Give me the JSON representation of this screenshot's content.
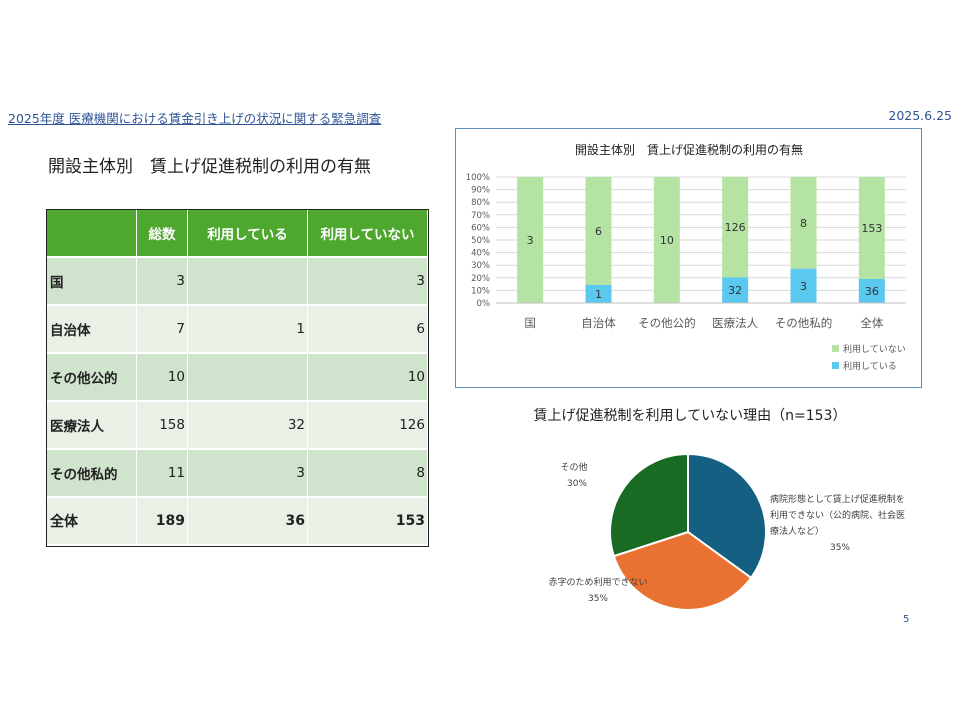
{
  "header": {
    "survey_title": "2025年度 医療機関における賃金引き上げの状況に関する緊急調査",
    "date": "2025.6.25"
  },
  "table": {
    "title": "開設主体別　賃上げ促進税制の利用の有無",
    "headers": [
      "",
      "総数",
      "利用している",
      "利用していない"
    ],
    "rows": [
      {
        "label": "国",
        "total": "3",
        "using": "",
        "not_using": "3"
      },
      {
        "label": "自治体",
        "total": "7",
        "using": "1",
        "not_using": "6"
      },
      {
        "label": "その他公的",
        "total": "10",
        "using": "",
        "not_using": "10"
      },
      {
        "label": "医療法人",
        "total": "158",
        "using": "32",
        "not_using": "126"
      },
      {
        "label": "その他私的",
        "total": "11",
        "using": "3",
        "not_using": "8"
      },
      {
        "label": "全体",
        "total": "189",
        "using": "36",
        "not_using": "153"
      }
    ]
  },
  "page_number": "5",
  "chart_data": [
    {
      "type": "bar",
      "stacked": "percent",
      "title": "開設主体別　賃上げ促進税制の利用の有無",
      "categories": [
        "国",
        "自治体",
        "その他公的",
        "医療法人",
        "その他私的",
        "全体"
      ],
      "series": [
        {
          "name": "利用している",
          "values": [
            0,
            1,
            0,
            32,
            3,
            36
          ],
          "color": "#5bc8f0"
        },
        {
          "name": "利用していない",
          "values": [
            3,
            6,
            10,
            126,
            8,
            153
          ],
          "color": "#b5e3a3"
        }
      ],
      "yticks": [
        "0%",
        "10%",
        "20%",
        "30%",
        "40%",
        "50%",
        "60%",
        "70%",
        "80%",
        "90%",
        "100%"
      ],
      "ylim": [
        0,
        100
      ],
      "legend_position": "bottom-right",
      "grid": true
    },
    {
      "type": "pie",
      "title": "賃上げ促進税制を利用していない理由（n=153）",
      "slices": [
        {
          "label": "病院形態として賃上げ促進税制を利用できない（公的病院、社会医療法人など）",
          "label_lines": [
            "病院形態として賃上げ促進税制を",
            "利用できない（公的病院、社会医",
            "療法人など）"
          ],
          "percent_label": "35%",
          "value": 35,
          "color": "#156082"
        },
        {
          "label": "赤字のため利用できない",
          "label_lines": [
            "赤字のため利用できない"
          ],
          "percent_label": "35%",
          "value": 35,
          "color": "#e97132"
        },
        {
          "label": "その他",
          "label_lines": [
            "その他"
          ],
          "percent_label": "30%",
          "value": 30,
          "color": "#196b24"
        }
      ]
    }
  ]
}
